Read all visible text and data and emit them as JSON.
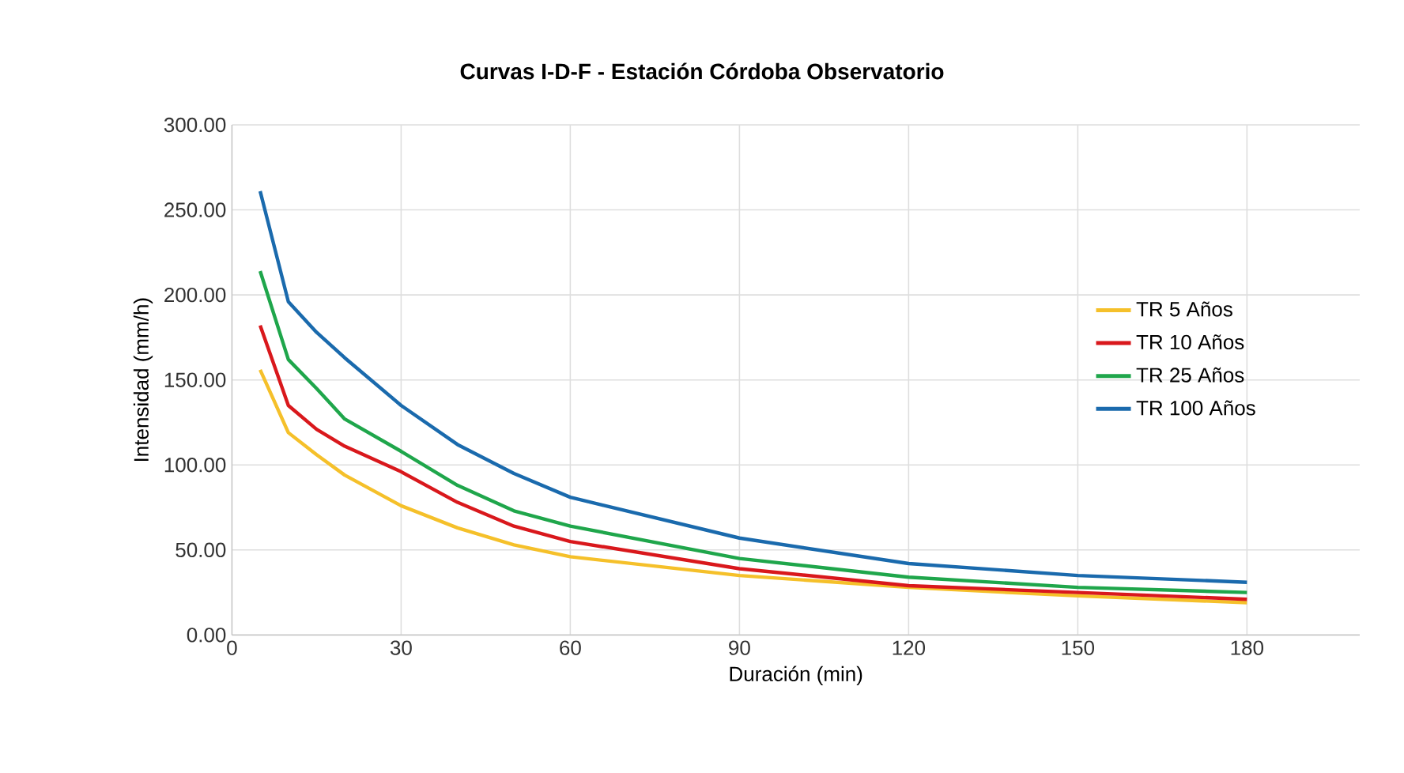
{
  "chart_data": {
    "type": "line",
    "title": "Curvas I-D-F  -  Estación Córdoba Observatorio",
    "xlabel": "Duración (min)",
    "ylabel": "Intensidad (mm/h)",
    "x": [
      5,
      10,
      15,
      20,
      30,
      40,
      50,
      60,
      90,
      120,
      150,
      180
    ],
    "series": [
      {
        "name": "TR 5 Años",
        "color": "#f5c02a",
        "values": [
          156,
          119,
          106,
          94,
          76,
          63,
          53,
          46,
          35,
          28,
          23,
          19
        ]
      },
      {
        "name": "TR 10 Años",
        "color": "#d9181c",
        "values": [
          182,
          135,
          121,
          111,
          96,
          78,
          64,
          55,
          39,
          29,
          25,
          21
        ]
      },
      {
        "name": "TR 25 Años",
        "color": "#1fa64b",
        "values": [
          214,
          162,
          145,
          127,
          108,
          88,
          73,
          64,
          45,
          34,
          28,
          25
        ]
      },
      {
        "name": "TR 100 Años",
        "color": "#1a6aad",
        "values": [
          261,
          196,
          178,
          163,
          135,
          112,
          95,
          81,
          57,
          42,
          35,
          31
        ]
      }
    ],
    "xlim": [
      0,
      200
    ],
    "xticks": [
      0,
      30,
      60,
      90,
      120,
      150,
      180
    ],
    "ylim": [
      0,
      300
    ],
    "yticks": [
      {
        "value": 0,
        "label": "0.00"
      },
      {
        "value": 50,
        "label": "50.00"
      },
      {
        "value": 100,
        "label": "100.00"
      },
      {
        "value": 150,
        "label": "150.00"
      },
      {
        "value": 200,
        "label": "200.00"
      },
      {
        "value": 250,
        "label": "250.00"
      },
      {
        "value": 300,
        "label": "300.00"
      }
    ],
    "grid": true,
    "legend": "right"
  }
}
